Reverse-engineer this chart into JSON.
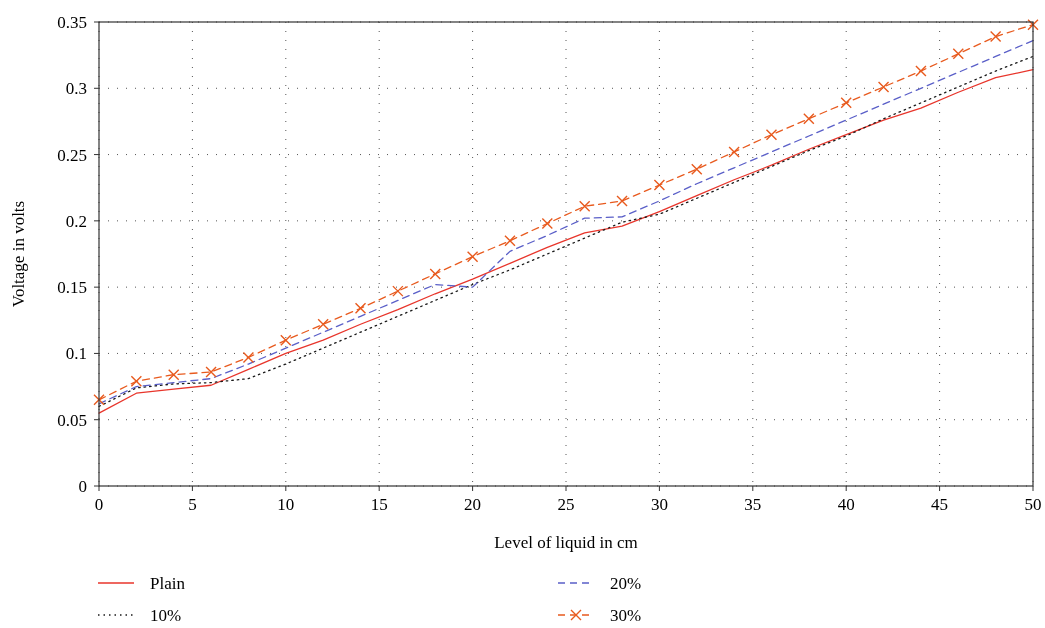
{
  "chart_data": {
    "type": "line",
    "xlabel": "Level of liquid in cm",
    "ylabel": "Voltage in volts",
    "x": [
      0,
      2,
      4,
      6,
      8,
      10,
      12,
      14,
      16,
      18,
      20,
      22,
      24,
      26,
      28,
      30,
      32,
      34,
      36,
      38,
      40,
      42,
      44,
      46,
      48,
      50
    ],
    "xlim": [
      0,
      50
    ],
    "xticks": [
      0,
      5,
      10,
      15,
      20,
      25,
      30,
      35,
      40,
      45,
      50
    ],
    "ylim": [
      0,
      0.35
    ],
    "yticks": [
      0,
      0.05,
      0.1,
      0.15,
      0.2,
      0.25,
      0.3,
      0.35
    ],
    "grid": true,
    "legend": "bottom",
    "series": [
      {
        "name": "Plain",
        "color": "#e8352b",
        "line_style": "solid",
        "marker": "none",
        "values": [
          0.055,
          0.07,
          0.073,
          0.076,
          0.088,
          0.1,
          0.11,
          0.122,
          0.133,
          0.145,
          0.156,
          0.168,
          0.18,
          0.191,
          0.196,
          0.207,
          0.219,
          0.231,
          0.242,
          0.254,
          0.265,
          0.276,
          0.285,
          0.297,
          0.308,
          0.314
        ]
      },
      {
        "name": "10%",
        "color": "#1a1a1a",
        "line_style": "dotted",
        "marker": "none",
        "values": [
          0.06,
          0.074,
          0.077,
          0.078,
          0.081,
          0.092,
          0.104,
          0.116,
          0.128,
          0.14,
          0.152,
          0.163,
          0.175,
          0.187,
          0.199,
          0.205,
          0.217,
          0.229,
          0.241,
          0.253,
          0.264,
          0.277,
          0.289,
          0.301,
          0.313,
          0.324
        ]
      },
      {
        "name": "20%",
        "color": "#5a5fc8",
        "line_style": "dashed",
        "marker": "none",
        "values": [
          0.062,
          0.075,
          0.078,
          0.081,
          0.092,
          0.104,
          0.116,
          0.128,
          0.14,
          0.152,
          0.15,
          0.177,
          0.189,
          0.202,
          0.203,
          0.215,
          0.228,
          0.24,
          0.252,
          0.264,
          0.276,
          0.288,
          0.3,
          0.312,
          0.324,
          0.336
        ]
      },
      {
        "name": "30%",
        "color": "#e85a1e",
        "line_style": "dashed",
        "marker": "cross",
        "values": [
          0.065,
          0.079,
          0.084,
          0.086,
          0.097,
          0.11,
          0.122,
          0.134,
          0.147,
          0.16,
          0.173,
          0.185,
          0.198,
          0.211,
          0.215,
          0.227,
          0.239,
          0.252,
          0.265,
          0.277,
          0.289,
          0.301,
          0.313,
          0.326,
          0.339,
          0.348
        ]
      }
    ]
  }
}
